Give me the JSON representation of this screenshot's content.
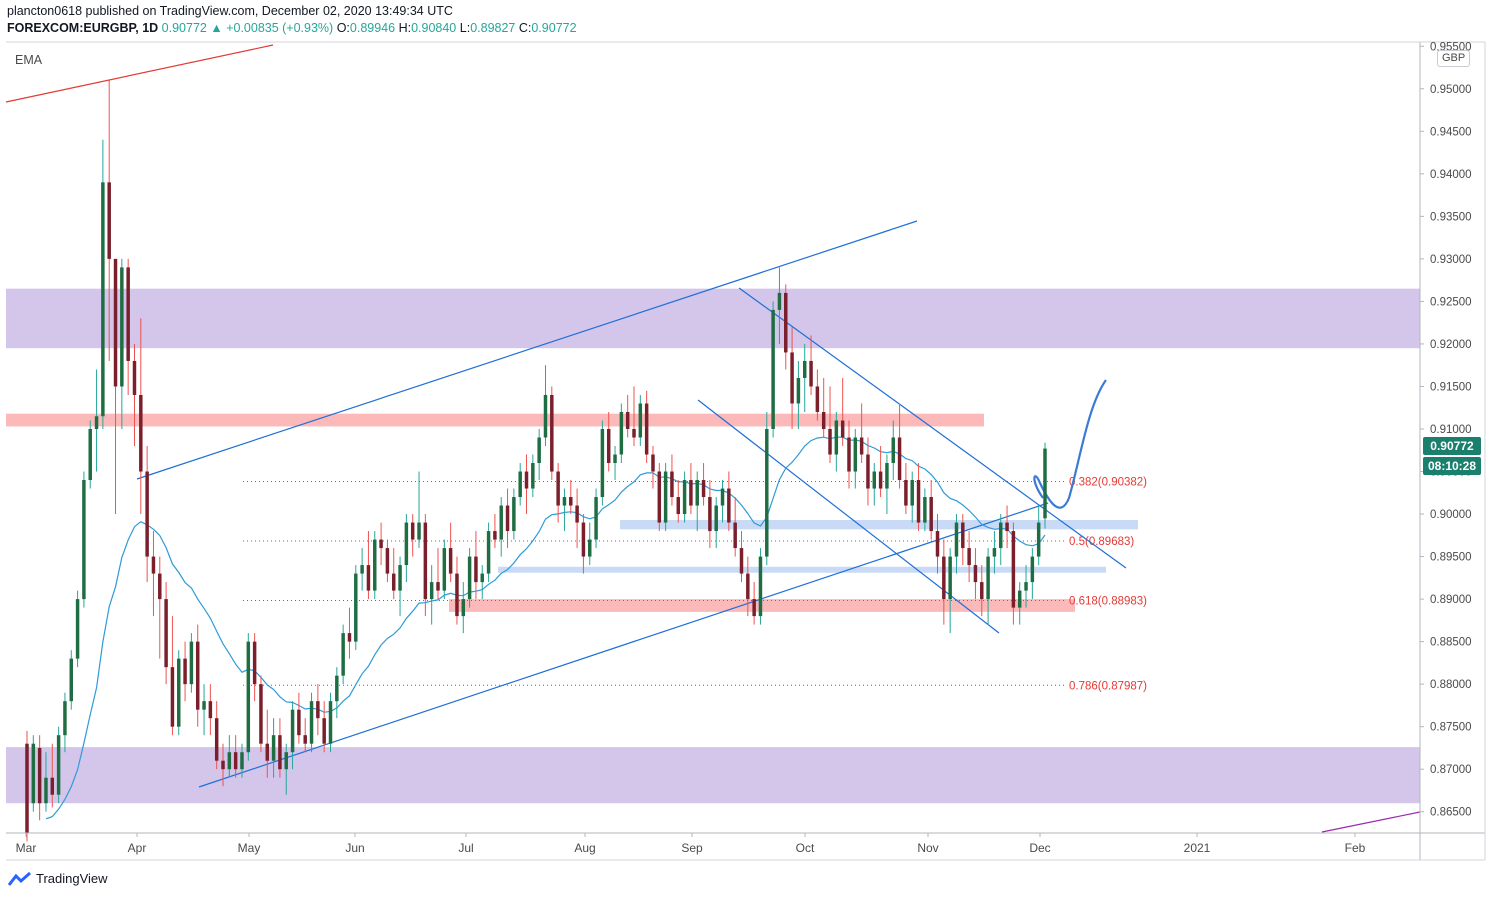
{
  "header": {
    "publisher_line": "plancton0618 published on TradingView.com, December 02, 2020 13:49:34 UTC",
    "symbol": "FOREXCOM:EURGBP, 1D",
    "last": "0.90772",
    "change": "▲ +0.00835 (+0.93%)",
    "o_label": "O:",
    "o_value": "0.89946",
    "h_label": "H:",
    "h_value": "0.90840",
    "l_label": "L:",
    "l_value": "0.89827",
    "c_label": "C:",
    "c_value": "0.90772"
  },
  "indicator_label": "EMA",
  "currency_badge": "GBP",
  "price_tag": "0.90772",
  "countdown_tag": "08:10:28",
  "footer_brand": "TradingView",
  "colors": {
    "up": "#26a69a",
    "down": "#ef5350",
    "candle_body_up": "#1f6e43",
    "candle_body_down": "#7a1f2b",
    "ema": "#2e9bd8",
    "trend": "#1e6fd9",
    "purple_zone": "#d3c6ea",
    "red_zone": "#fbb9b9",
    "blue_zone": "#c8daf5",
    "fib": "#e53935"
  },
  "chart_data": {
    "type": "candlestick",
    "symbol": "FOREXCOM:EURGBP",
    "interval": "1D",
    "y_axis": {
      "ticks": [
        "0.95500",
        "0.95000",
        "0.94500",
        "0.94000",
        "0.93500",
        "0.93000",
        "0.92500",
        "0.92000",
        "0.91500",
        "0.91000",
        "0.90500",
        "0.90000",
        "0.89500",
        "0.89000",
        "0.88500",
        "0.88000",
        "0.87500",
        "0.87000",
        "0.86500"
      ],
      "range": [
        0.8625,
        0.9555
      ]
    },
    "x_axis": {
      "ticks": [
        "Mar",
        "Apr",
        "May",
        "Jun",
        "Jul",
        "Aug",
        "Sep",
        "Oct",
        "Nov",
        "Dec",
        "2021",
        "Feb"
      ]
    },
    "fib_levels": [
      {
        "label": "0.382(0.90382)",
        "value": 0.90382
      },
      {
        "label": "0.5(0.89683)",
        "value": 0.89683
      },
      {
        "label": "0.618(0.88983)",
        "value": 0.88983
      },
      {
        "label": "0.786(0.87987)",
        "value": 0.87987
      }
    ],
    "zones": [
      {
        "kind": "purple",
        "low": 0.9195,
        "high": 0.9265
      },
      {
        "kind": "purple",
        "low": 0.866,
        "high": 0.8726
      },
      {
        "kind": "red",
        "low": 0.9103,
        "high": 0.9118
      },
      {
        "kind": "red",
        "low": 0.8885,
        "high": 0.89
      },
      {
        "kind": "blue",
        "low": 0.8982,
        "high": 0.8993
      },
      {
        "kind": "blue",
        "low": 0.8931,
        "high": 0.8938
      }
    ],
    "candles": [
      [
        0.873,
        0.8745,
        0.8615,
        0.8625
      ],
      [
        0.866,
        0.874,
        0.865,
        0.873
      ],
      [
        0.8725,
        0.874,
        0.864,
        0.866
      ],
      [
        0.866,
        0.872,
        0.865,
        0.869
      ],
      [
        0.869,
        0.873,
        0.8655,
        0.867
      ],
      [
        0.867,
        0.875,
        0.866,
        0.874
      ],
      [
        0.874,
        0.879,
        0.872,
        0.878
      ],
      [
        0.878,
        0.884,
        0.877,
        0.883
      ],
      [
        0.883,
        0.891,
        0.882,
        0.89
      ],
      [
        0.89,
        0.905,
        0.889,
        0.904
      ],
      [
        0.904,
        0.911,
        0.903,
        0.91
      ],
      [
        0.91,
        0.917,
        0.905,
        0.9115
      ],
      [
        0.9115,
        0.944,
        0.91,
        0.939
      ],
      [
        0.939,
        0.951,
        0.918,
        0.93
      ],
      [
        0.93,
        0.93,
        0.9,
        0.915
      ],
      [
        0.915,
        0.93,
        0.91,
        0.929
      ],
      [
        0.929,
        0.93,
        0.914,
        0.918
      ],
      [
        0.918,
        0.92,
        0.908,
        0.914
      ],
      [
        0.914,
        0.923,
        0.9,
        0.905
      ],
      [
        0.905,
        0.908,
        0.892,
        0.895
      ],
      [
        0.895,
        0.898,
        0.888,
        0.893
      ],
      [
        0.893,
        0.895,
        0.883,
        0.89
      ],
      [
        0.89,
        0.892,
        0.88,
        0.882
      ],
      [
        0.882,
        0.888,
        0.874,
        0.875
      ],
      [
        0.875,
        0.884,
        0.874,
        0.883
      ],
      [
        0.883,
        0.885,
        0.878,
        0.88
      ],
      [
        0.88,
        0.886,
        0.879,
        0.885
      ],
      [
        0.885,
        0.887,
        0.875,
        0.877
      ],
      [
        0.877,
        0.88,
        0.874,
        0.878
      ],
      [
        0.878,
        0.88,
        0.874,
        0.876
      ],
      [
        0.876,
        0.878,
        0.87,
        0.871
      ],
      [
        0.871,
        0.873,
        0.868,
        0.87
      ],
      [
        0.87,
        0.874,
        0.869,
        0.872
      ],
      [
        0.872,
        0.874,
        0.869,
        0.87
      ],
      [
        0.87,
        0.873,
        0.869,
        0.872
      ],
      [
        0.872,
        0.886,
        0.871,
        0.885
      ],
      [
        0.885,
        0.886,
        0.878,
        0.88
      ],
      [
        0.88,
        0.881,
        0.872,
        0.873
      ],
      [
        0.873,
        0.877,
        0.869,
        0.871
      ],
      [
        0.871,
        0.876,
        0.869,
        0.874
      ],
      [
        0.874,
        0.876,
        0.869,
        0.87
      ],
      [
        0.87,
        0.873,
        0.867,
        0.872
      ],
      [
        0.872,
        0.878,
        0.87,
        0.877
      ],
      [
        0.877,
        0.879,
        0.873,
        0.874
      ],
      [
        0.874,
        0.876,
        0.872,
        0.873
      ],
      [
        0.873,
        0.879,
        0.872,
        0.878
      ],
      [
        0.878,
        0.88,
        0.874,
        0.876
      ],
      [
        0.876,
        0.878,
        0.872,
        0.873
      ],
      [
        0.873,
        0.879,
        0.872,
        0.878
      ],
      [
        0.878,
        0.882,
        0.876,
        0.881
      ],
      [
        0.881,
        0.887,
        0.88,
        0.886
      ],
      [
        0.886,
        0.889,
        0.883,
        0.885
      ],
      [
        0.885,
        0.894,
        0.884,
        0.893
      ],
      [
        0.893,
        0.896,
        0.891,
        0.894
      ],
      [
        0.894,
        0.898,
        0.89,
        0.891
      ],
      [
        0.891,
        0.898,
        0.89,
        0.897
      ],
      [
        0.897,
        0.899,
        0.894,
        0.896
      ],
      [
        0.896,
        0.897,
        0.892,
        0.893
      ],
      [
        0.893,
        0.896,
        0.89,
        0.891
      ],
      [
        0.891,
        0.895,
        0.888,
        0.894
      ],
      [
        0.894,
        0.9,
        0.892,
        0.899
      ],
      [
        0.899,
        0.9,
        0.895,
        0.897
      ],
      [
        0.897,
        0.905,
        0.896,
        0.899
      ],
      [
        0.899,
        0.9,
        0.888,
        0.89
      ],
      [
        0.89,
        0.894,
        0.887,
        0.892
      ],
      [
        0.892,
        0.896,
        0.89,
        0.891
      ],
      [
        0.891,
        0.897,
        0.89,
        0.896
      ],
      [
        0.896,
        0.899,
        0.892,
        0.893
      ],
      [
        0.893,
        0.895,
        0.887,
        0.888
      ],
      [
        0.888,
        0.892,
        0.886,
        0.89
      ],
      [
        0.89,
        0.896,
        0.889,
        0.895
      ],
      [
        0.895,
        0.898,
        0.89,
        0.892
      ],
      [
        0.892,
        0.894,
        0.89,
        0.893
      ],
      [
        0.893,
        0.899,
        0.892,
        0.898
      ],
      [
        0.898,
        0.9,
        0.896,
        0.897
      ],
      [
        0.897,
        0.902,
        0.895,
        0.901
      ],
      [
        0.901,
        0.903,
        0.896,
        0.898
      ],
      [
        0.898,
        0.903,
        0.897,
        0.902
      ],
      [
        0.902,
        0.906,
        0.901,
        0.905
      ],
      [
        0.905,
        0.907,
        0.9,
        0.903
      ],
      [
        0.903,
        0.907,
        0.902,
        0.906
      ],
      [
        0.906,
        0.91,
        0.904,
        0.909
      ],
      [
        0.909,
        0.9175,
        0.908,
        0.914
      ],
      [
        0.914,
        0.915,
        0.904,
        0.905
      ],
      [
        0.905,
        0.906,
        0.899,
        0.901
      ],
      [
        0.901,
        0.903,
        0.898,
        0.902
      ],
      [
        0.902,
        0.904,
        0.9,
        0.901
      ],
      [
        0.901,
        0.903,
        0.896,
        0.899
      ],
      [
        0.899,
        0.9,
        0.893,
        0.895
      ],
      [
        0.895,
        0.899,
        0.894,
        0.897
      ],
      [
        0.897,
        0.903,
        0.896,
        0.902
      ],
      [
        0.902,
        0.911,
        0.901,
        0.91
      ],
      [
        0.91,
        0.912,
        0.905,
        0.906
      ],
      [
        0.906,
        0.908,
        0.904,
        0.907
      ],
      [
        0.907,
        0.913,
        0.906,
        0.912
      ],
      [
        0.912,
        0.914,
        0.909,
        0.91
      ],
      [
        0.91,
        0.915,
        0.908,
        0.909
      ],
      [
        0.909,
        0.914,
        0.908,
        0.913
      ],
      [
        0.913,
        0.9145,
        0.906,
        0.907
      ],
      [
        0.907,
        0.908,
        0.903,
        0.905
      ],
      [
        0.905,
        0.906,
        0.898,
        0.899
      ],
      [
        0.899,
        0.906,
        0.898,
        0.905
      ],
      [
        0.905,
        0.907,
        0.901,
        0.902
      ],
      [
        0.902,
        0.904,
        0.899,
        0.9
      ],
      [
        0.9,
        0.905,
        0.899,
        0.904
      ],
      [
        0.904,
        0.906,
        0.9,
        0.901
      ],
      [
        0.901,
        0.905,
        0.898,
        0.904
      ],
      [
        0.904,
        0.906,
        0.901,
        0.902
      ],
      [
        0.902,
        0.904,
        0.896,
        0.898
      ],
      [
        0.898,
        0.902,
        0.896,
        0.901
      ],
      [
        0.901,
        0.904,
        0.899,
        0.903
      ],
      [
        0.903,
        0.905,
        0.898,
        0.899
      ],
      [
        0.899,
        0.902,
        0.895,
        0.896
      ],
      [
        0.896,
        0.898,
        0.892,
        0.893
      ],
      [
        0.893,
        0.895,
        0.888,
        0.89
      ],
      [
        0.89,
        0.892,
        0.887,
        0.888
      ],
      [
        0.888,
        0.896,
        0.887,
        0.895
      ],
      [
        0.895,
        0.912,
        0.894,
        0.91
      ],
      [
        0.91,
        0.925,
        0.909,
        0.924
      ],
      [
        0.924,
        0.929,
        0.92,
        0.926
      ],
      [
        0.926,
        0.927,
        0.917,
        0.919
      ],
      [
        0.919,
        0.922,
        0.91,
        0.913
      ],
      [
        0.913,
        0.918,
        0.91,
        0.916
      ],
      [
        0.916,
        0.92,
        0.912,
        0.918
      ],
      [
        0.918,
        0.921,
        0.914,
        0.915
      ],
      [
        0.915,
        0.917,
        0.911,
        0.912
      ],
      [
        0.912,
        0.916,
        0.909,
        0.91
      ],
      [
        0.91,
        0.915,
        0.906,
        0.907
      ],
      [
        0.907,
        0.912,
        0.905,
        0.911
      ],
      [
        0.911,
        0.916,
        0.908,
        0.909
      ],
      [
        0.909,
        0.911,
        0.903,
        0.905
      ],
      [
        0.905,
        0.91,
        0.903,
        0.909
      ],
      [
        0.909,
        0.913,
        0.906,
        0.907
      ],
      [
        0.907,
        0.909,
        0.901,
        0.903
      ],
      [
        0.903,
        0.906,
        0.901,
        0.905
      ],
      [
        0.905,
        0.908,
        0.902,
        0.903
      ],
      [
        0.903,
        0.907,
        0.9,
        0.906
      ],
      [
        0.906,
        0.911,
        0.904,
        0.909
      ],
      [
        0.909,
        0.913,
        0.903,
        0.904
      ],
      [
        0.904,
        0.906,
        0.9,
        0.901
      ],
      [
        0.901,
        0.905,
        0.899,
        0.904
      ],
      [
        0.904,
        0.906,
        0.898,
        0.899
      ],
      [
        0.899,
        0.903,
        0.898,
        0.902
      ],
      [
        0.902,
        0.904,
        0.897,
        0.898
      ],
      [
        0.898,
        0.9,
        0.893,
        0.895
      ],
      [
        0.895,
        0.897,
        0.887,
        0.89
      ],
      [
        0.89,
        0.896,
        0.886,
        0.895
      ],
      [
        0.895,
        0.9,
        0.893,
        0.899
      ],
      [
        0.899,
        0.9,
        0.894,
        0.896
      ],
      [
        0.896,
        0.898,
        0.892,
        0.894
      ],
      [
        0.894,
        0.896,
        0.89,
        0.892
      ],
      [
        0.892,
        0.894,
        0.888,
        0.89
      ],
      [
        0.89,
        0.896,
        0.887,
        0.895
      ],
      [
        0.895,
        0.898,
        0.893,
        0.896
      ],
      [
        0.896,
        0.9,
        0.894,
        0.899
      ],
      [
        0.899,
        0.901,
        0.896,
        0.898
      ],
      [
        0.898,
        0.899,
        0.887,
        0.889
      ],
      [
        0.889,
        0.892,
        0.887,
        0.891
      ],
      [
        0.891,
        0.894,
        0.889,
        0.892
      ],
      [
        0.892,
        0.896,
        0.89,
        0.895
      ],
      [
        0.895,
        0.901,
        0.894,
        0.899
      ],
      [
        0.8995,
        0.9084,
        0.8983,
        0.9077
      ]
    ],
    "ema_note": "EMA"
  }
}
